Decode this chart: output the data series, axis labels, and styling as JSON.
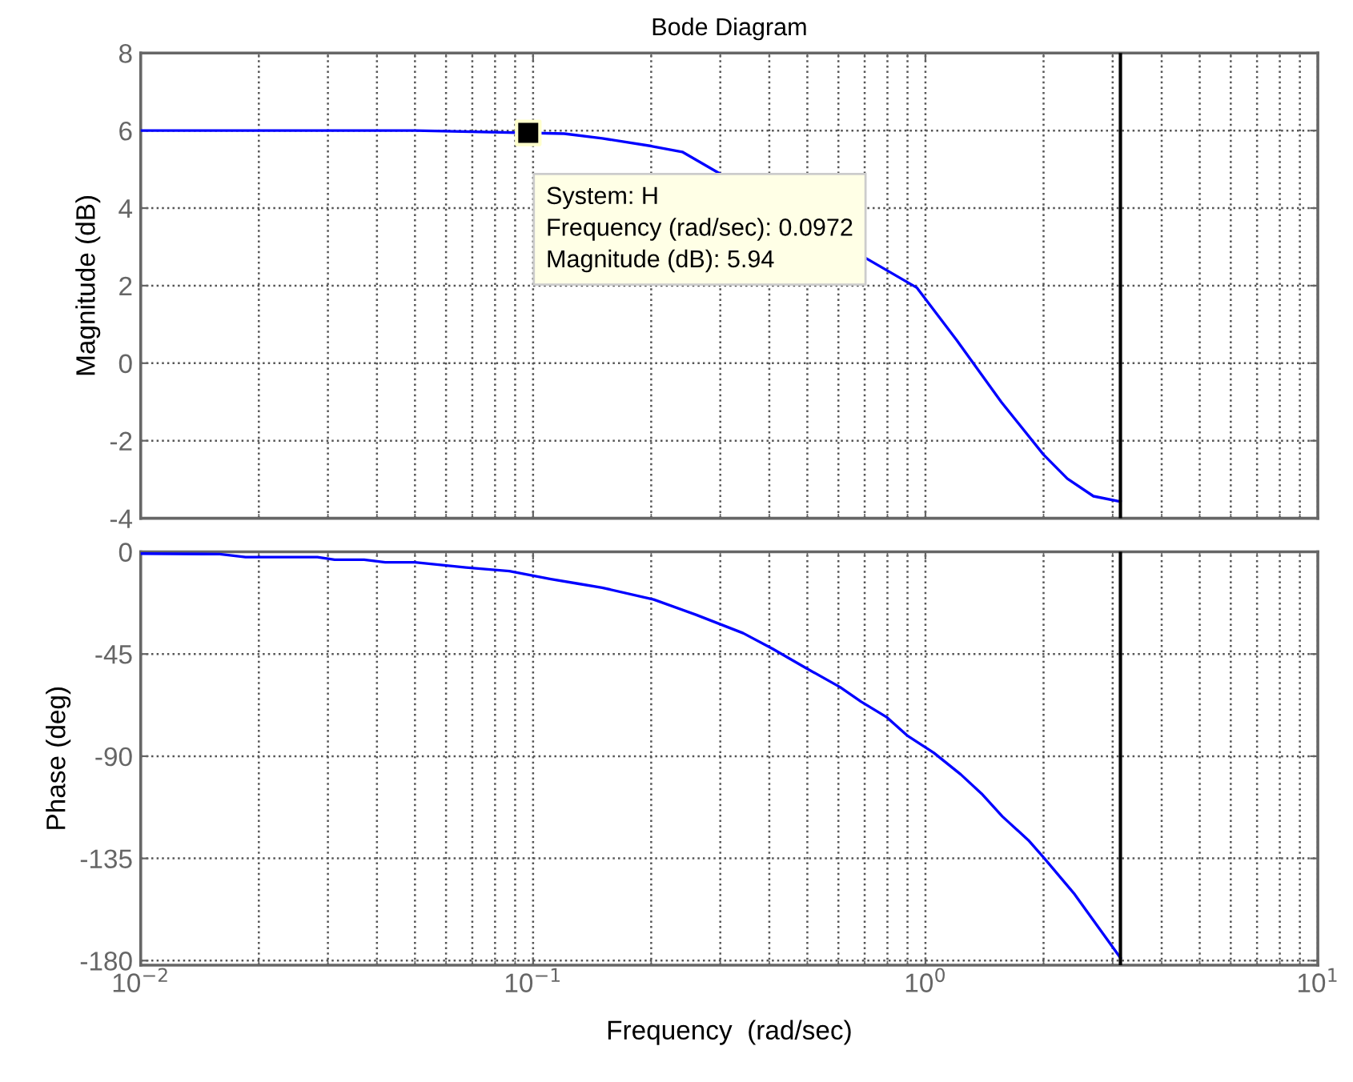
{
  "chart_data": [
    {
      "type": "line",
      "title": "Bode Diagram",
      "ylabel": "Magnitude (dB)",
      "xlim": [
        0.01,
        10
      ],
      "ylim": [
        -4,
        8
      ],
      "log": "x",
      "grid": true,
      "tick_labels": "y",
      "marker": "none",
      "line_style": "solid",
      "xticks": [
        {
          "value": 0.01,
          "label": null
        },
        {
          "value": 0.1,
          "label": null
        },
        {
          "value": 1,
          "label": null
        },
        {
          "value": 10,
          "label": null
        }
      ],
      "yticks": [
        -4,
        -2,
        0,
        2,
        4,
        6,
        8
      ],
      "series": [
        {
          "color": "#0000ff",
          "x": [
            0.01,
            0.02,
            0.05,
            0.12,
            0.15,
            0.2,
            0.24,
            0.95,
            1.2,
            1.56,
            2.0,
            2.3,
            2.68,
            3.14
          ],
          "values": [
            6.0,
            6.0,
            6.0,
            5.92,
            5.8,
            5.6,
            5.45,
            1.95,
            0.6,
            -1.0,
            -2.36,
            -2.98,
            -3.43,
            -3.57
          ]
        },
        {
          "type": "scatter",
          "color": "#000000",
          "marker": "square",
          "x": [
            0.0972
          ],
          "values": [
            5.94
          ]
        }
      ],
      "ref_lines": [
        {
          "axis": "x",
          "value": 3.14,
          "color": "#000000"
        }
      ],
      "annotations": [
        {
          "text": "System: H\nFrequency (rad/sec): 0.0972\nMagnitude (dB): 5.94",
          "x": 0.0972,
          "y": 5.94
        }
      ]
    },
    {
      "type": "line",
      "xlabel": "Frequency  (rad/sec)",
      "ylabel": "Phase (deg)",
      "xlim": [
        0.01,
        10
      ],
      "ylim": [
        -182,
        0
      ],
      "log": "x",
      "grid": true,
      "marker": "none",
      "line_style": "solid",
      "xticks": [
        {
          "value": 0.01,
          "label": "10$^{−2}$"
        },
        {
          "value": 0.1,
          "label": "10$^{−1}$"
        },
        {
          "value": 1,
          "label": "10$^{0}$"
        },
        {
          "value": 10,
          "label": "10$^{1}$"
        }
      ],
      "yticks": [
        -180,
        -135,
        -90,
        -45,
        0
      ],
      "series": [
        {
          "color": "#0000ff",
          "x": [
            0.01,
            0.0159,
            0.0185,
            0.0282,
            0.0312,
            0.0371,
            0.042,
            0.05,
            0.0675,
            0.087,
            0.111,
            0.13,
            0.15,
            0.203,
            0.26,
            0.343,
            0.408,
            0.494,
            0.606,
            0.686,
            0.795,
            0.897,
            1.05,
            1.23,
            1.39,
            1.57,
            1.83,
            2.01,
            2.4,
            3.14
          ],
          "values": [
            -0.8,
            -1,
            -2.3,
            -2.3,
            -3.5,
            -3.5,
            -4.6,
            -4.6,
            -6.9,
            -8.5,
            -12,
            -14,
            -15.8,
            -21,
            -27.7,
            -35.8,
            -42.7,
            -51,
            -59.6,
            -66,
            -72.7,
            -80.8,
            -88.5,
            -98,
            -106.5,
            -116.5,
            -127,
            -135,
            -150.8,
            -178.8
          ]
        }
      ],
      "ref_lines": [
        {
          "axis": "x",
          "value": 3.14,
          "color": "#000000"
        }
      ]
    }
  ]
}
